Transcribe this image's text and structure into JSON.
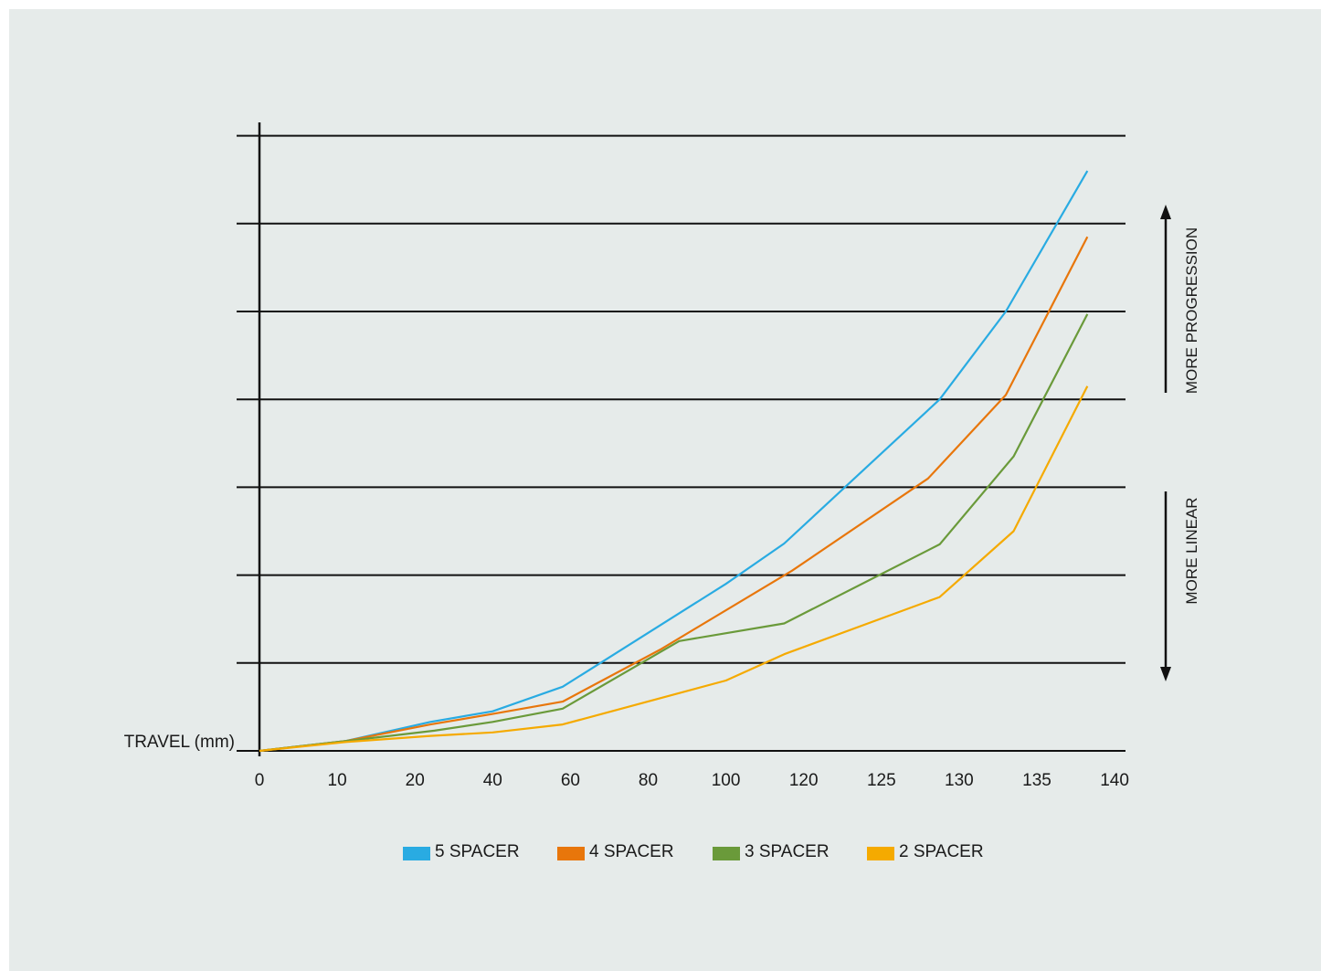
{
  "chart_data": {
    "type": "line",
    "title": "",
    "xlabel": "TRAVEL (mm)",
    "ylabel": "",
    "x_categories": [
      "0",
      "10",
      "20",
      "40",
      "60",
      "80",
      "100",
      "120",
      "125",
      "130",
      "135",
      "140"
    ],
    "ylim": [
      0,
      7
    ],
    "y_gridlines": 7,
    "grid": "horizontal",
    "legend": "bottom",
    "series": [
      {
        "name": "5 SPACER",
        "color": "#29abe2",
        "points": [
          [
            0,
            0
          ],
          [
            1.1,
            0.11
          ],
          [
            2.2,
            0.33
          ],
          [
            3,
            0.45
          ],
          [
            3.9,
            0.73
          ],
          [
            6,
            1.9
          ],
          [
            6.75,
            2.36
          ],
          [
            8.75,
            4
          ],
          [
            9.6,
            5
          ],
          [
            10.65,
            6.6
          ]
        ]
      },
      {
        "name": "4 SPACER",
        "color": "#e8760b",
        "points": [
          [
            0,
            0
          ],
          [
            1.1,
            0.11
          ],
          [
            2.2,
            0.3
          ],
          [
            3,
            0.42
          ],
          [
            3.9,
            0.56
          ],
          [
            5.15,
            1.15
          ],
          [
            6.85,
            2.05
          ],
          [
            8.6,
            3.1
          ],
          [
            9.6,
            4.05
          ],
          [
            10.65,
            5.85
          ]
        ]
      },
      {
        "name": "3 SPACER",
        "color": "#6a9a3a",
        "points": [
          [
            0,
            0
          ],
          [
            1.1,
            0.11
          ],
          [
            2.25,
            0.23
          ],
          [
            3,
            0.33
          ],
          [
            3.9,
            0.48
          ],
          [
            5.4,
            1.25
          ],
          [
            6.75,
            1.45
          ],
          [
            8.75,
            2.35
          ],
          [
            9.7,
            3.35
          ],
          [
            10.65,
            4.97
          ]
        ]
      },
      {
        "name": "2 SPACER",
        "color": "#f5aa00",
        "points": [
          [
            0,
            0
          ],
          [
            1.1,
            0.1
          ],
          [
            2.2,
            0.17
          ],
          [
            3,
            0.21
          ],
          [
            3.9,
            0.3
          ],
          [
            6,
            0.8
          ],
          [
            6.75,
            1.1
          ],
          [
            8.75,
            1.75
          ],
          [
            9.7,
            2.5
          ],
          [
            10.65,
            4.15
          ]
        ]
      }
    ],
    "annotations": [
      {
        "text": "MORE PROGRESSION",
        "direction": "up"
      },
      {
        "text": "MORE LINEAR",
        "direction": "down"
      }
    ]
  }
}
